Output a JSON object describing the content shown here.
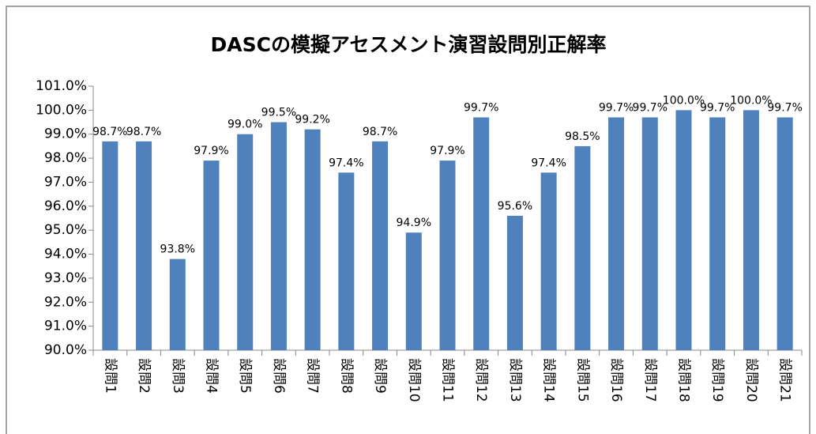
{
  "chart_data": {
    "type": "bar",
    "title": "DASCの模擬アセスメント演習設問別正解率",
    "categories": [
      "設問1",
      "設問2",
      "設問3",
      "設問4",
      "設問5",
      "設問6",
      "設問7",
      "設問8",
      "設問9",
      "設問10",
      "設問11",
      "設問12",
      "設問13",
      "設問14",
      "設問15",
      "設問16",
      "設問17",
      "設問18",
      "設問19",
      "設問20",
      "設問21"
    ],
    "values": [
      98.7,
      98.7,
      93.8,
      97.9,
      99.0,
      99.5,
      99.2,
      97.4,
      98.7,
      94.9,
      97.9,
      99.7,
      95.6,
      97.4,
      98.5,
      99.7,
      99.7,
      100.0,
      99.7,
      100.0,
      99.7
    ],
    "value_labels": [
      "98.7%",
      "98.7%",
      "93.8%",
      "97.9%",
      "99.0%",
      "99.5%",
      "99.2%",
      "97.4%",
      "98.7%",
      "94.9%",
      "97.9%",
      "99.7%",
      "95.6%",
      "97.4%",
      "98.5%",
      "99.7%",
      "99.7%",
      "100.0%",
      "99.7%",
      "100.0%",
      "99.7%"
    ],
    "color": "#4f81bd",
    "ylim": [
      90,
      101
    ],
    "yticks": [
      {
        "value": 90,
        "label": "90.0%"
      },
      {
        "value": 91,
        "label": "91.0%"
      },
      {
        "value": 92,
        "label": "92.0%"
      },
      {
        "value": 93,
        "label": "93.0%"
      },
      {
        "value": 94,
        "label": "94.0%"
      },
      {
        "value": 95,
        "label": "95.0%"
      },
      {
        "value": 96,
        "label": "96.0%"
      },
      {
        "value": 97,
        "label": "97.0%"
      },
      {
        "value": 98,
        "label": "98.0%"
      },
      {
        "value": 99,
        "label": "99.0%"
      },
      {
        "value": 100,
        "label": "100.0%"
      },
      {
        "value": 101,
        "label": "101.0%"
      }
    ],
    "grid": false
  }
}
